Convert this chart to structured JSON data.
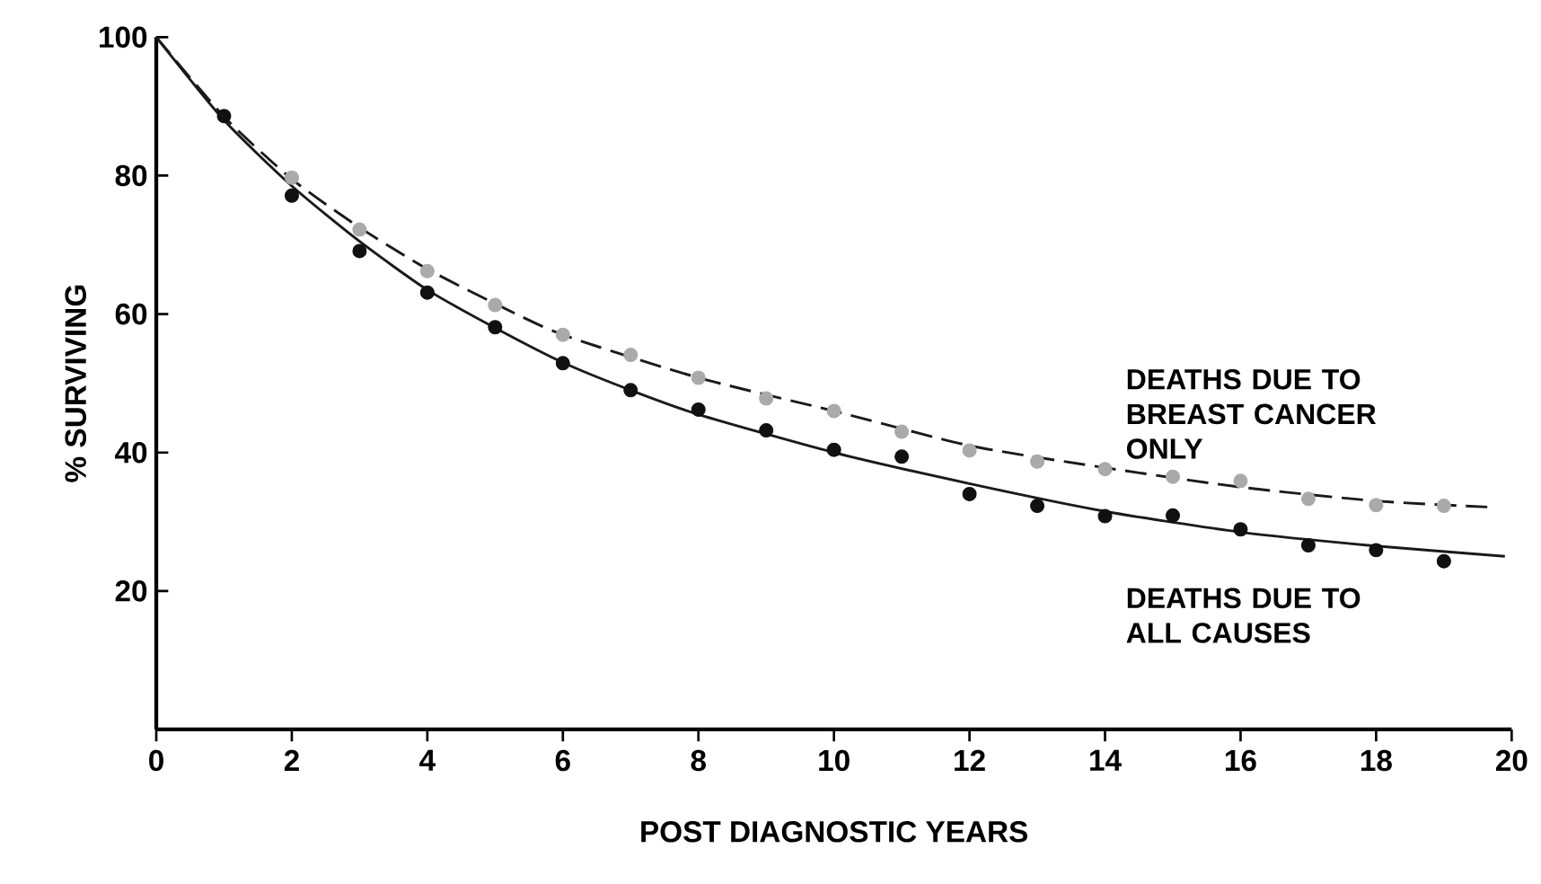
{
  "chart_data": {
    "type": "line",
    "xlabel": "POST DIAGNOSTIC YEARS",
    "ylabel": "% SURVIVING",
    "xlim": [
      0,
      20
    ],
    "xticks": [
      0,
      2,
      4,
      6,
      8,
      10,
      12,
      14,
      16,
      18,
      20
    ],
    "ylim": [
      0,
      100
    ],
    "yticks": [
      20,
      40,
      60,
      80,
      100
    ],
    "grid": false,
    "legend": false,
    "series": [
      {
        "name": "DEATHS DUE TO ALL CAUSES",
        "color": "#1a1a1a",
        "line_style": "solid",
        "marker": "none",
        "x": [
          0,
          1,
          2,
          3,
          4,
          5,
          6,
          7,
          8,
          10,
          12,
          14,
          16,
          18,
          19.9
        ],
        "values": [
          100,
          88,
          78.5,
          70.5,
          63.5,
          58,
          53,
          49,
          45.5,
          40,
          35.5,
          31.5,
          28.5,
          26.5,
          25
        ]
      },
      {
        "name": "DEATHS DUE TO BREAST CANCER ONLY",
        "color": "#1a1a1a",
        "line_style": "dashed",
        "marker": "none",
        "x": [
          0,
          1,
          2,
          3,
          4,
          5,
          6,
          8,
          10,
          12,
          14,
          16,
          18,
          19.7
        ],
        "values": [
          100,
          88.5,
          79.5,
          72.5,
          66.5,
          61.5,
          57,
          50.8,
          46,
          41,
          37.8,
          35,
          33,
          32.1
        ]
      },
      {
        "type": "scatter",
        "color": "#111111",
        "marker": "circle",
        "x": [
          1,
          2,
          3,
          4,
          5,
          6,
          7,
          8,
          9,
          10,
          11,
          12,
          13,
          14,
          15,
          16,
          17,
          18,
          19
        ],
        "values": [
          88.6,
          77.1,
          69.1,
          63.1,
          58.1,
          52.9,
          49.0,
          46.2,
          43.2,
          40.4,
          39.4,
          34.0,
          32.3,
          30.8,
          30.9,
          28.9,
          26.6,
          25.9,
          24.3
        ]
      },
      {
        "type": "scatter",
        "color": "#aaaaaa",
        "marker": "circle",
        "x": [
          2,
          3,
          4,
          5,
          6,
          7,
          8,
          9,
          10,
          11,
          12,
          13,
          14,
          15,
          16,
          17,
          18,
          19
        ],
        "values": [
          79.7,
          72.2,
          66.2,
          61.3,
          57.0,
          54.1,
          50.8,
          47.8,
          46.0,
          43.0,
          40.3,
          38.7,
          37.6,
          36.5,
          35.9,
          33.3,
          32.4,
          32.3
        ]
      }
    ]
  }
}
